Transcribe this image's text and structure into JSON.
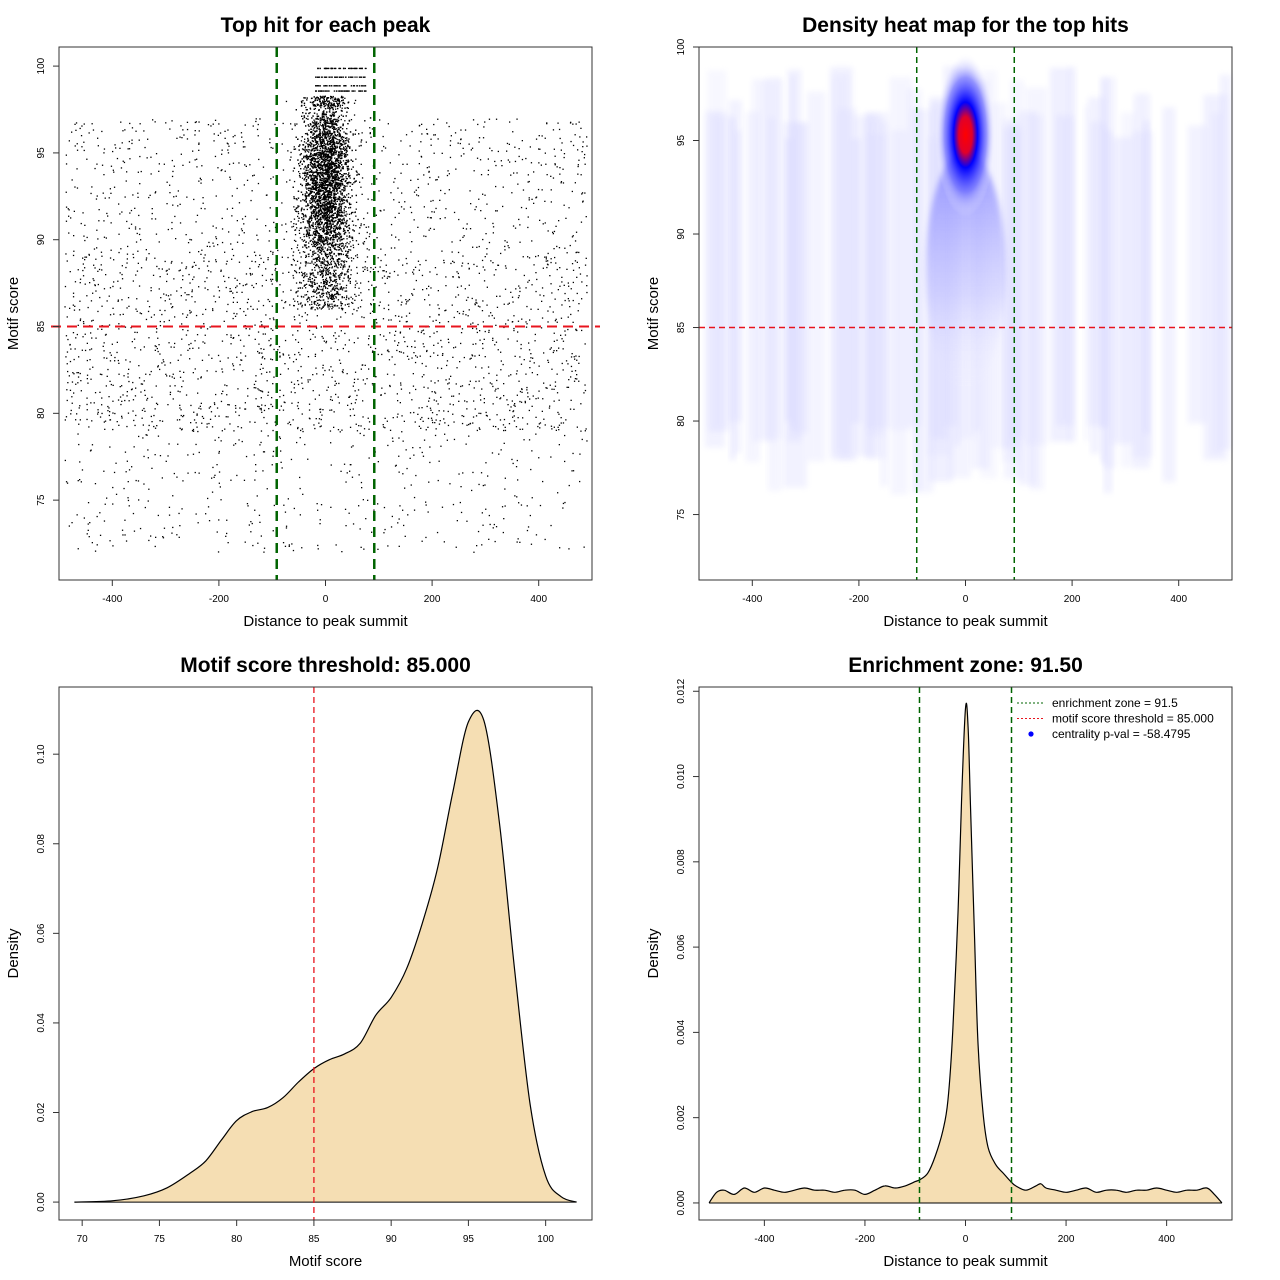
{
  "chart_data": [
    {
      "type": "scatter",
      "title": "Top hit for each peak",
      "xlabel": "Distance to peak summit",
      "ylabel": "Motif score",
      "xlim": [
        -500,
        500
      ],
      "ylim": [
        70.4,
        101.1
      ],
      "xticks": [
        -400,
        -200,
        0,
        200,
        400
      ],
      "yticks": [
        75,
        80,
        85,
        90,
        95,
        100
      ],
      "hline": 85,
      "vlines": [
        -91.5,
        91.5
      ],
      "points_note": "thousands of points; central cluster around x=0 between scores ~84-100, sparse background across all distances",
      "colors": {
        "points": "#000000",
        "hline": "#e8141e",
        "vlines": "#006400"
      }
    },
    {
      "type": "heatmap",
      "title": "Density heat map for the top hits",
      "xlabel": "Distance to peak summit",
      "ylabel": "Motif score",
      "xlim": [
        -500,
        500
      ],
      "ylim": [
        71.5,
        100
      ],
      "xticks": [
        -400,
        -200,
        0,
        200,
        400
      ],
      "yticks": [
        75,
        80,
        85,
        90,
        95,
        100
      ],
      "hline": 85,
      "vlines": [
        -91.5,
        91.5
      ],
      "peak": {
        "x": 0,
        "y": 95.3
      },
      "colors": {
        "low": "#ffffff",
        "mid": "#0000ff",
        "high": "#ff0000",
        "hline": "#e8141e",
        "vlines": "#006400"
      }
    },
    {
      "type": "area",
      "title": "Motif score threshold: 85.000",
      "xlabel": "Motif score",
      "ylabel": "Density",
      "xlim": [
        68.5,
        103
      ],
      "ylim": [
        -0.004,
        0.115
      ],
      "xticks": [
        70,
        75,
        80,
        85,
        90,
        95,
        100
      ],
      "yticks": [
        0.0,
        0.02,
        0.04,
        0.06,
        0.08,
        0.1
      ],
      "ytick_labels": [
        "0.00",
        "0.02",
        "0.04",
        "0.06",
        "0.08",
        "0.10"
      ],
      "vline": 85,
      "x": [
        69.5,
        72,
        74,
        75.5,
        77,
        78,
        79,
        80,
        81,
        82,
        83,
        84,
        85,
        86,
        87,
        88,
        89,
        90,
        91,
        92,
        93,
        94,
        95,
        96,
        97,
        98,
        99,
        100,
        101,
        102
      ],
      "y": [
        0.0,
        0.0003,
        0.0014,
        0.0032,
        0.0065,
        0.0092,
        0.0138,
        0.0182,
        0.0202,
        0.0211,
        0.0233,
        0.0268,
        0.0298,
        0.0318,
        0.0331,
        0.0355,
        0.0417,
        0.0457,
        0.0521,
        0.0621,
        0.0745,
        0.0917,
        0.1072,
        0.1075,
        0.0849,
        0.0515,
        0.0217,
        0.0058,
        0.0012,
        0.0
      ],
      "colors": {
        "fill": "#f5deb3",
        "line": "#000000",
        "vline": "#e8141e"
      }
    },
    {
      "type": "area",
      "title": "Enrichment zone: 91.50",
      "xlabel": "Distance to peak summit",
      "ylabel": "Density",
      "xlim": [
        -530,
        530
      ],
      "ylim": [
        -0.0004,
        0.0121
      ],
      "xticks": [
        -400,
        -200,
        0,
        200,
        400
      ],
      "yticks": [
        0.0,
        0.002,
        0.004,
        0.006,
        0.008,
        0.01,
        0.012
      ],
      "ytick_labels": [
        "0.000",
        "0.002",
        "0.004",
        "0.006",
        "0.008",
        "0.010",
        "0.012"
      ],
      "vlines": [
        -91.5,
        91.5
      ],
      "x": [
        -510,
        -495,
        -480,
        -460,
        -440,
        -420,
        -400,
        -380,
        -360,
        -340,
        -320,
        -300,
        -280,
        -260,
        -240,
        -220,
        -200,
        -180,
        -160,
        -140,
        -120,
        -100,
        -90,
        -75,
        -60,
        -45,
        -35,
        -25,
        -15,
        -8,
        0,
        5,
        10,
        18,
        25,
        35,
        45,
        60,
        75,
        90,
        100,
        120,
        140,
        150,
        160,
        180,
        200,
        220,
        240,
        260,
        280,
        300,
        320,
        340,
        360,
        380,
        400,
        420,
        440,
        460,
        480,
        495,
        510
      ],
      "y": [
        0.0,
        0.00025,
        0.0003,
        0.0002,
        0.00035,
        0.00025,
        0.00035,
        0.0003,
        0.00025,
        0.0003,
        0.00035,
        0.0003,
        0.0003,
        0.00025,
        0.0003,
        0.0003,
        0.0002,
        0.0003,
        0.0004,
        0.00035,
        0.0004,
        0.0005,
        0.00055,
        0.0007,
        0.0011,
        0.0017,
        0.0024,
        0.0041,
        0.0068,
        0.0094,
        0.0116,
        0.0112,
        0.0093,
        0.0062,
        0.0037,
        0.0021,
        0.0013,
        0.0009,
        0.0007,
        0.0005,
        0.0004,
        0.0003,
        0.0004,
        0.00045,
        0.00035,
        0.0003,
        0.00025,
        0.0003,
        0.00035,
        0.00025,
        0.0003,
        0.0003,
        0.00025,
        0.0003,
        0.0003,
        0.00035,
        0.0003,
        0.00025,
        0.0003,
        0.0003,
        0.00035,
        0.0002,
        0.0
      ],
      "legend": [
        {
          "label": "enrichment zone = 91.5",
          "kind": "dotted-line",
          "color": "#006400"
        },
        {
          "label": "motif score threshold = 85.000",
          "kind": "dotted-line",
          "color": "#e8141e"
        },
        {
          "label": "centrality p-val = -58.4795",
          "kind": "point",
          "color": "#0000ff"
        }
      ],
      "legend_position": "top-right",
      "colors": {
        "fill": "#f5deb3",
        "line": "#000000",
        "vlines": "#006400"
      }
    }
  ]
}
